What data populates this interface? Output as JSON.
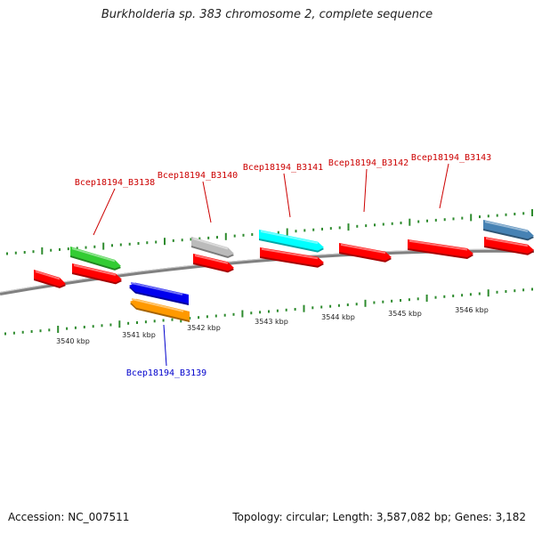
{
  "title": "Burkholderia sp. 383 chromosome 2, complete sequence",
  "footer": {
    "accession": "Accession: NC_007511",
    "summary": "Topology: circular; Length: 3,587,082 bp; Genes: 3,182"
  },
  "colors": {
    "backbone": "#808080",
    "tick": "#2e8b2e",
    "label_forward": "#cc0000",
    "label_reverse": "#0000cc"
  },
  "axis": {
    "tick_labels": [
      "3540 kbp",
      "3541 kbp",
      "3542 kbp",
      "3543 kbp",
      "3544 kbp",
      "3545 kbp",
      "3546 kbp"
    ]
  },
  "gene_labels": [
    {
      "name": "Bcep18194_B3138",
      "strand": "forward"
    },
    {
      "name": "Bcep18194_B3139",
      "strand": "reverse"
    },
    {
      "name": "Bcep18194_B3140",
      "strand": "forward"
    },
    {
      "name": "Bcep18194_B3141",
      "strand": "forward"
    },
    {
      "name": "Bcep18194_B3142",
      "strand": "forward"
    },
    {
      "name": "Bcep18194_B3143",
      "strand": "forward"
    }
  ],
  "features": [
    {
      "track": "cds-forward",
      "color": "#ff0000",
      "strand": "forward"
    },
    {
      "track": "cds-forward",
      "color": "#ff0000",
      "strand": "forward"
    },
    {
      "track": "cds-forward",
      "color": "#ff0000",
      "strand": "forward"
    },
    {
      "track": "cds-forward",
      "color": "#ff0000",
      "strand": "forward"
    },
    {
      "track": "cds-forward",
      "color": "#ff0000",
      "strand": "forward"
    },
    {
      "track": "cds-forward",
      "color": "#ff0000",
      "strand": "forward"
    },
    {
      "track": "cds-forward",
      "color": "#ff0000",
      "strand": "forward"
    },
    {
      "track": "gene-forward",
      "color": "#33cc33",
      "strand": "forward"
    },
    {
      "track": "gene-forward",
      "color": "#bbbbbb",
      "strand": "forward"
    },
    {
      "track": "gene-forward",
      "color": "#00ffff",
      "strand": "forward"
    },
    {
      "track": "gene-forward",
      "color": "#4682b4",
      "strand": "forward"
    },
    {
      "track": "gene-reverse",
      "color": "#0000ee",
      "strand": "reverse"
    },
    {
      "track": "cds-reverse",
      "color": "#ff9900",
      "strand": "reverse"
    }
  ]
}
